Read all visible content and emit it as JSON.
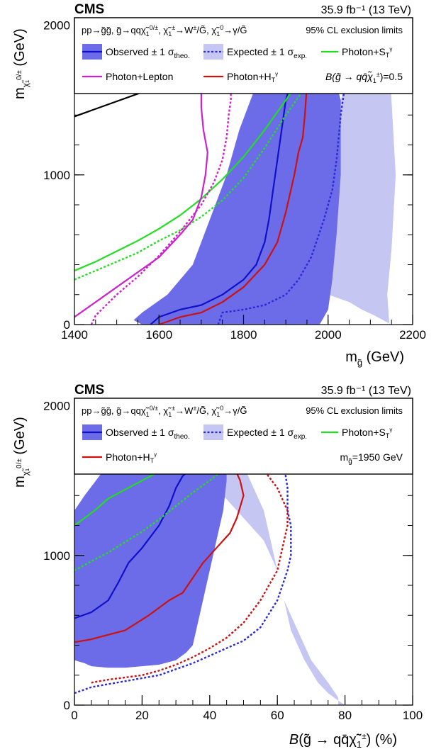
{
  "chart_data": [
    {
      "type": "line",
      "experiment": "CMS",
      "lumi": "35.9 fb⁻¹ (13 TeV)",
      "xlabel": "m̃g (GeV)",
      "ylabel": "mχ̃₁⁰/± (GeV)",
      "xlim": [
        1400,
        2200
      ],
      "ylim": [
        0,
        2050
      ],
      "xticks": [
        "1400",
        "1600",
        "1800",
        "2000",
        "2200"
      ],
      "yticks": [
        "0",
        "1000",
        "2000"
      ],
      "legend": {
        "process": "pp→g̃g̃, g̃→qqχ̃₁⁰/±, χ̃₁±→W±/G̃, χ̃₁⁰→γ/G̃",
        "cl": "95% CL exclusion limits",
        "observed": "Observed ± 1 σtheo.",
        "expected": "Expected ± 1 σexp.",
        "photon_st": "Photon+Sᵀᵞ",
        "photon_lepton": "Photon+Lepton",
        "photon_ht": "Photon+Hᵀᵞ",
        "condition": "B(g̃ → qq̅χ̃₁±)=0.5"
      },
      "colors": {
        "observed": "#1010cc",
        "observed_band": "#6c6ce8",
        "expected": "#2a2ad8",
        "expected_band": "#c6c6f3",
        "photon_st": "#22dd22",
        "photon_lepton": "#cc22cc",
        "photon_ht": "#cc1111",
        "kinematic": "#000000"
      },
      "kinematic_line": [
        [
          1400,
          1390
        ],
        [
          2200,
          2200
        ]
      ],
      "series": [
        {
          "key": "exp_band",
          "style": "band",
          "x": [
            1740,
            1800,
            1900,
            1950,
            2000,
            2030,
            2060,
            2090,
            2110,
            2130,
            2140,
            2150,
            2130,
            2110,
            2080,
            2050,
            2000,
            1980,
            1960,
            1930,
            1900,
            1870,
            1860,
            1870,
            1890,
            1920,
            1950,
            1975,
            2000,
            2030,
            2050,
            2080,
            2100,
            2120,
            2130,
            2140,
            2150,
            2160,
            2150,
            2140,
            2145
          ],
          "y": [
            0,
            0,
            0,
            0,
            0,
            0,
            0,
            0,
            0,
            0,
            0,
            0,
            30,
            60,
            100,
            150,
            200,
            230,
            260,
            300,
            300,
            300,
            310,
            350,
            500,
            700,
            900,
            1100,
            1300,
            1500,
            1700,
            1900,
            2000,
            2070,
            2070,
            1990,
            1500,
            1000,
            500,
            200,
            0
          ]
        },
        {
          "key": "obs_band",
          "style": "band",
          "x": [
            1560,
            1600,
            1650,
            1700,
            1750,
            1800,
            1850,
            1900,
            1940,
            1960,
            1980,
            2000,
            2010,
            2020,
            2030,
            2030,
            2010,
            1990,
            1970,
            1950,
            1940,
            1930,
            1900,
            1870,
            1830,
            1790,
            1760,
            1720,
            1680,
            1620,
            1560,
            1540
          ],
          "y": [
            0,
            0,
            0,
            0,
            0,
            0,
            0,
            0,
            0,
            0,
            0,
            100,
            300,
            600,
            1000,
            1500,
            1700,
            1800,
            1850,
            1880,
            1900,
            1900,
            1870,
            1820,
            1600,
            1300,
            1000,
            700,
            400,
            200,
            80,
            30
          ]
        },
        {
          "key": "observed",
          "style": "solid",
          "x": [
            1580,
            1600,
            1650,
            1700,
            1750,
            1800,
            1830,
            1850,
            1860,
            1870,
            1880,
            1890,
            1900,
            1920,
            1935,
            1950,
            1970,
            1990,
            2000
          ],
          "y": [
            0,
            50,
            100,
            130,
            200,
            300,
            400,
            550,
            700,
            900,
            1100,
            1300,
            1500,
            1700,
            1850,
            1900,
            1930,
            1950,
            1960
          ]
        },
        {
          "key": "expected",
          "style": "dotted",
          "x": [
            1740,
            1750,
            1800,
            1850,
            1900,
            1930,
            1960,
            1990,
            2010,
            2020,
            2030,
            2040,
            2040,
            2045,
            2050,
            2055,
            2060
          ],
          "y": [
            0,
            80,
            100,
            130,
            200,
            300,
            450,
            700,
            900,
            1100,
            1400,
            1600,
            1700,
            1800,
            1900,
            1950,
            2000
          ]
        },
        {
          "key": "photon_ht",
          "style": "solid",
          "x": [
            1600,
            1650,
            1700,
            1750,
            1800,
            1850,
            1880,
            1900,
            1920,
            1930,
            1940,
            1945,
            1950,
            1940,
            1930,
            1925,
            1930
          ],
          "y": [
            0,
            50,
            80,
            150,
            250,
            400,
            550,
            750,
            1000,
            1150,
            1250,
            1400,
            1600,
            1750,
            1850,
            1900,
            1920
          ]
        },
        {
          "key": "photon_st",
          "style": "solid",
          "x": [
            1400,
            1450,
            1500,
            1550,
            1600,
            1650,
            1700,
            1750,
            1800,
            1850,
            1900,
            1950,
            2000,
            2040
          ],
          "y": [
            360,
            420,
            490,
            560,
            640,
            730,
            840,
            970,
            1120,
            1300,
            1500,
            1700,
            1880,
            2010
          ]
        },
        {
          "key": "photon_st_exp",
          "style": "dotted",
          "x": [
            1400,
            1450,
            1500,
            1550,
            1600,
            1650,
            1700,
            1750,
            1800,
            1850,
            1900,
            1950,
            2000,
            2060
          ],
          "y": [
            300,
            360,
            420,
            480,
            560,
            630,
            720,
            830,
            980,
            1180,
            1400,
            1600,
            1800,
            2000
          ]
        },
        {
          "key": "photon_lepton",
          "style": "solid",
          "x": [
            1400,
            1450,
            1500,
            1550,
            1600,
            1650,
            1680,
            1700,
            1710,
            1715,
            1705,
            1700,
            1700,
            1710,
            1730,
            1760,
            1780
          ],
          "y": [
            50,
            150,
            250,
            350,
            450,
            600,
            700,
            850,
            1000,
            1150,
            1300,
            1450,
            1550,
            1650,
            1720,
            1760,
            1780
          ]
        },
        {
          "key": "photon_lepton_exp",
          "style": "dotted",
          "x": [
            1440,
            1450,
            1500,
            1550,
            1600,
            1650,
            1700,
            1730,
            1750,
            1760,
            1765,
            1770,
            1770,
            1772,
            1778,
            1785
          ],
          "y": [
            0,
            60,
            200,
            320,
            460,
            620,
            800,
            950,
            1100,
            1250,
            1400,
            1500,
            1600,
            1660,
            1720,
            1770
          ]
        }
      ]
    },
    {
      "type": "line",
      "experiment": "CMS",
      "lumi": "35.9 fb⁻¹ (13 TeV)",
      "xlabel": "B(g̃ → qq̅χ̃₁±) (%)",
      "ylabel": "mχ̃₁⁰/± (GeV)",
      "xlim": [
        0,
        100
      ],
      "ylim": [
        0,
        2050
      ],
      "xticks": [
        "0",
        "20",
        "40",
        "60",
        "80",
        "100"
      ],
      "yticks": [
        "0",
        "1000",
        "2000"
      ],
      "legend": {
        "process": "pp→g̃g̃, g̃→qqχ̃₁⁰/±, χ̃₁±→W±/G̃, χ̃₁⁰→γ/G̃",
        "cl": "95% CL exclusion limits",
        "observed": "Observed ± 1 σtheo.",
        "expected": "Expected ± 1 σexp.",
        "photon_st": "Photon+Sᵀᵞ",
        "photon_ht": "Photon+Hᵀᵞ",
        "condition": "m̃g=1950 GeV"
      },
      "series": [
        {
          "key": "exp_band",
          "style": "band",
          "x": [
            0,
            20,
            40,
            60,
            78,
            78,
            75,
            70,
            66,
            62,
            60,
            58,
            56,
            52,
            48,
            45,
            42,
            40,
            38,
            36,
            40,
            48,
            56,
            60,
            62,
            64,
            68,
            72,
            75,
            78,
            80,
            82,
            80,
            78
          ],
          "y": [
            0,
            0,
            0,
            0,
            0,
            50,
            150,
            300,
            500,
            700,
            900,
            1100,
            1300,
            1500,
            1700,
            1850,
            1930,
            1930,
            1880,
            1700,
            1500,
            1300,
            1100,
            900,
            700,
            500,
            300,
            150,
            80,
            30,
            0,
            0,
            0,
            0
          ]
        },
        {
          "key": "obs_band",
          "style": "band",
          "x": [
            0,
            0,
            3,
            8,
            15,
            25,
            30,
            35,
            40,
            43,
            45,
            45,
            44,
            42,
            40,
            38,
            36,
            35,
            33,
            30,
            25,
            20,
            15,
            10,
            5,
            3,
            0
          ],
          "y": [
            300,
            1300,
            1400,
            1550,
            1700,
            1880,
            1920,
            1930,
            1930,
            1900,
            1700,
            1500,
            1300,
            1100,
            900,
            700,
            500,
            400,
            350,
            300,
            270,
            260,
            250,
            250,
            260,
            280,
            300
          ]
        },
        {
          "key": "observed",
          "style": "solid",
          "x": [
            0,
            5,
            10,
            13,
            16,
            20,
            25,
            28,
            30,
            32,
            34,
            36,
            37,
            37,
            36,
            38,
            42,
            46,
            50,
            55
          ],
          "y": [
            580,
            620,
            700,
            820,
            950,
            1050,
            1200,
            1330,
            1450,
            1530,
            1570,
            1600,
            1650,
            1750,
            1800,
            1840,
            1880,
            1910,
            1920,
            1930
          ]
        },
        {
          "key": "expected",
          "style": "dotted",
          "x": [
            0,
            5,
            10,
            15,
            20,
            25,
            30,
            35,
            40,
            45,
            50,
            55,
            60,
            63,
            64,
            64,
            64,
            63,
            63,
            62,
            64,
            66,
            68
          ],
          "y": [
            80,
            120,
            140,
            160,
            180,
            200,
            240,
            280,
            330,
            380,
            430,
            520,
            700,
            900,
            1000,
            1100,
            1200,
            1300,
            1450,
            1600,
            1750,
            1850,
            1930
          ]
        },
        {
          "key": "photon_ht",
          "style": "solid",
          "x": [
            0,
            5,
            15,
            22,
            28,
            32,
            35,
            38,
            42,
            46,
            48,
            50,
            49,
            47,
            46,
            45,
            44,
            46,
            48
          ],
          "y": [
            420,
            440,
            500,
            600,
            700,
            750,
            850,
            950,
            1050,
            1150,
            1250,
            1400,
            1500,
            1600,
            1700,
            1800,
            1880,
            1920,
            1930
          ]
        },
        {
          "key": "photon_ht_exp",
          "style": "dotted",
          "x": [
            5,
            10,
            20,
            25,
            30,
            35,
            40,
            45,
            50,
            55,
            60,
            62,
            63,
            63,
            60,
            55,
            50,
            45,
            44
          ],
          "y": [
            150,
            170,
            200,
            230,
            270,
            320,
            380,
            450,
            550,
            700,
            900,
            1100,
            1200,
            1300,
            1450,
            1600,
            1700,
            1800,
            1930
          ]
        },
        {
          "key": "photon_st",
          "style": "solid",
          "x": [
            0,
            3,
            6,
            10,
            15,
            20,
            25,
            30,
            35,
            40,
            45,
            50,
            55,
            58
          ],
          "y": [
            1200,
            1250,
            1300,
            1380,
            1440,
            1500,
            1560,
            1620,
            1700,
            1730,
            1780,
            1830,
            1900,
            1930
          ]
        },
        {
          "key": "photon_st_exp",
          "style": "dotted",
          "x": [
            0,
            5,
            10,
            15,
            20,
            25,
            30,
            35,
            40,
            45,
            50,
            55,
            60,
            65,
            68
          ],
          "y": [
            900,
            960,
            1020,
            1090,
            1160,
            1240,
            1330,
            1420,
            1500,
            1590,
            1680,
            1760,
            1830,
            1890,
            1930
          ]
        }
      ]
    }
  ]
}
